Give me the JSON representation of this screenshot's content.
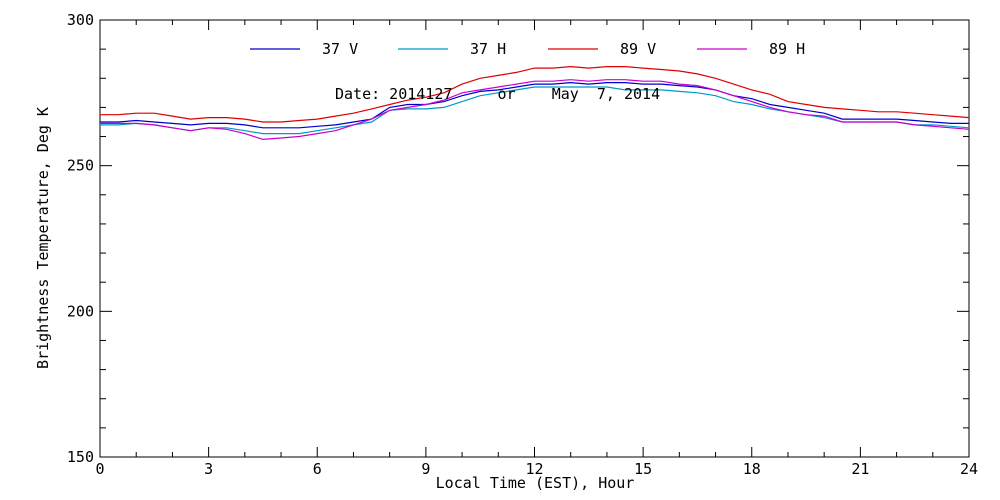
{
  "chart_data": {
    "type": "line",
    "xlabel": "Local Time (EST), Hour",
    "ylabel": "Brightness Temperature, Deg K",
    "annotation": "Date: 2014127     or    May  7, 2014",
    "xlim": [
      0,
      24
    ],
    "ylim": [
      150,
      300
    ],
    "xticks": [
      0,
      3,
      6,
      9,
      12,
      15,
      18,
      21,
      24
    ],
    "yticks": [
      150,
      200,
      250,
      300
    ],
    "legend_position": "top",
    "x": [
      0,
      0.5,
      1,
      1.5,
      2,
      2.5,
      3,
      3.5,
      4,
      4.5,
      5,
      5.5,
      6,
      6.5,
      7,
      7.5,
      8,
      8.5,
      9,
      9.5,
      10,
      10.5,
      11,
      11.5,
      12,
      12.5,
      13,
      13.5,
      14,
      14.5,
      15,
      15.5,
      16,
      16.5,
      17,
      17.5,
      18,
      18.5,
      19,
      19.5,
      20,
      20.5,
      21,
      21.5,
      22,
      22.5,
      23,
      23.5,
      24
    ],
    "series": [
      {
        "name": "37 V",
        "color": "#0000cc",
        "values": [
          265,
          265,
          265.5,
          265,
          264.5,
          264,
          264.5,
          264.5,
          264,
          263,
          263,
          263,
          263.5,
          264,
          265,
          266,
          270,
          271,
          271,
          272,
          274,
          275.5,
          276,
          277,
          278,
          278,
          278.5,
          278,
          278.5,
          278.5,
          278,
          278,
          277.5,
          277,
          276,
          274,
          273,
          271,
          270,
          269,
          268,
          266,
          266,
          266,
          266,
          265.5,
          265,
          264.5,
          264.5
        ]
      },
      {
        "name": "37 H",
        "color": "#0099cc",
        "values": [
          264,
          264,
          264.5,
          264,
          263,
          262,
          263,
          263,
          262,
          261,
          261,
          261,
          262,
          263,
          264,
          265,
          269,
          269.5,
          269.5,
          270,
          272,
          274,
          275,
          276,
          277,
          277,
          277,
          277,
          277,
          276,
          276,
          276,
          275.5,
          275,
          274,
          272,
          271,
          269.5,
          268.5,
          267.5,
          266.5,
          265,
          265,
          265,
          265,
          264,
          264,
          263.5,
          263
        ]
      },
      {
        "name": "89 V",
        "color": "#dd0000",
        "values": [
          267.5,
          267.5,
          268,
          268,
          267,
          266,
          266.5,
          266.5,
          266,
          265,
          265,
          265.5,
          266,
          267,
          268,
          269.5,
          271,
          272.5,
          273.5,
          275,
          278,
          280,
          281,
          282,
          283.5,
          283.5,
          284,
          283.5,
          284,
          284,
          283.5,
          283,
          282.5,
          281.5,
          280,
          278,
          276,
          274.5,
          272,
          271,
          270,
          269.5,
          269,
          268.5,
          268.5,
          268,
          267.5,
          267,
          266.5
        ]
      },
      {
        "name": "89 H",
        "color": "#cc00cc",
        "values": [
          264.5,
          264.5,
          264.5,
          264,
          263,
          262,
          263,
          262.5,
          261,
          259,
          259.5,
          260,
          261,
          262,
          264,
          266,
          269,
          270,
          271,
          272.5,
          275,
          276,
          277,
          278,
          279,
          279,
          279.5,
          279,
          279.5,
          279.5,
          279,
          279,
          278,
          277.5,
          276,
          274,
          272,
          270,
          268.5,
          267.5,
          267,
          265,
          265,
          265,
          265,
          264,
          263.5,
          263,
          262.5
        ]
      }
    ]
  }
}
